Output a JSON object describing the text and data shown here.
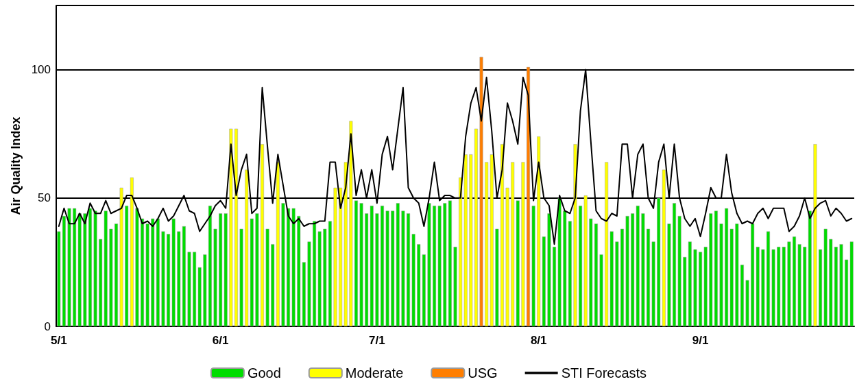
{
  "chart_data": {
    "type": "bar",
    "stacked": true,
    "ylabel": "Air Quality Index",
    "ylim": [
      0,
      125
    ],
    "yticks": [
      0,
      50,
      100
    ],
    "grid": "y",
    "legend": "bottom",
    "categories": [
      "5/1",
      null,
      null,
      null,
      null,
      null,
      null,
      null,
      null,
      null,
      null,
      null,
      null,
      null,
      null,
      null,
      null,
      null,
      null,
      null,
      null,
      null,
      null,
      null,
      null,
      null,
      null,
      null,
      null,
      null,
      null,
      "6/1",
      null,
      null,
      null,
      null,
      null,
      null,
      null,
      null,
      null,
      null,
      null,
      null,
      null,
      null,
      null,
      null,
      null,
      null,
      null,
      null,
      null,
      null,
      null,
      null,
      null,
      null,
      null,
      null,
      null,
      "7/1",
      null,
      null,
      null,
      null,
      null,
      null,
      null,
      null,
      null,
      null,
      null,
      null,
      null,
      null,
      null,
      null,
      null,
      null,
      null,
      null,
      null,
      null,
      null,
      null,
      null,
      null,
      null,
      null,
      null,
      null,
      "8/1",
      null,
      null,
      null,
      null,
      null,
      null,
      null,
      null,
      null,
      null,
      null,
      null,
      null,
      null,
      null,
      null,
      null,
      null,
      null,
      null,
      null,
      null,
      null,
      null,
      null,
      null,
      null,
      null,
      null,
      null,
      "9/1",
      null,
      null,
      null,
      null,
      null,
      null,
      null,
      null,
      null,
      null,
      null,
      null,
      null,
      null,
      null,
      null,
      null,
      null,
      null,
      null,
      null,
      null,
      null,
      null,
      null,
      null,
      null,
      null,
      null
    ],
    "series": [
      {
        "name": "Good",
        "color": "#00dd00",
        "values": [
          37,
          43,
          46,
          46,
          44,
          44,
          46,
          45,
          34,
          45,
          38,
          40,
          null,
          47,
          null,
          46,
          42,
          40,
          42,
          42,
          37,
          36,
          42,
          37,
          39,
          29,
          29,
          23,
          28,
          47,
          38,
          44,
          44,
          null,
          null,
          38,
          null,
          42,
          44,
          null,
          38,
          32,
          null,
          48,
          46,
          46,
          43,
          25,
          33,
          41,
          37,
          38,
          41,
          null,
          null,
          null,
          null,
          49,
          48,
          44,
          47,
          44,
          47,
          45,
          45,
          48,
          45,
          44,
          36,
          32,
          28,
          48,
          47,
          47,
          48,
          49,
          31,
          null,
          null,
          null,
          null,
          null,
          null,
          null,
          38,
          null,
          null,
          null,
          49,
          null,
          null,
          47,
          null,
          35,
          44,
          31,
          50,
          45,
          41,
          null,
          47,
          null,
          42,
          40,
          28,
          null,
          37,
          33,
          38,
          43,
          44,
          47,
          44,
          38,
          33,
          50,
          null,
          40,
          48,
          43,
          27,
          33,
          30,
          29,
          31,
          44,
          45,
          40,
          46,
          38,
          40,
          24,
          18,
          40,
          31,
          30,
          37,
          30,
          31,
          31,
          33,
          35,
          32,
          31,
          45,
          null,
          30,
          38,
          34,
          31,
          32,
          26,
          33
        ]
      },
      {
        "name": "Moderate",
        "color": "#ffff00",
        "values": [
          null,
          null,
          null,
          null,
          null,
          null,
          null,
          null,
          null,
          null,
          null,
          null,
          54,
          null,
          58,
          null,
          null,
          null,
          null,
          null,
          null,
          null,
          null,
          null,
          null,
          null,
          null,
          null,
          null,
          null,
          null,
          null,
          null,
          77,
          77,
          null,
          61,
          null,
          null,
          71,
          null,
          null,
          64,
          null,
          null,
          null,
          null,
          null,
          null,
          null,
          null,
          null,
          null,
          54,
          54,
          64,
          80,
          null,
          null,
          null,
          null,
          null,
          null,
          null,
          null,
          null,
          null,
          null,
          null,
          null,
          null,
          null,
          null,
          null,
          null,
          null,
          null,
          58,
          67,
          67,
          77,
          null,
          64,
          67,
          null,
          71,
          54,
          64,
          null,
          64,
          null,
          null,
          74,
          null,
          null,
          null,
          null,
          null,
          null,
          71,
          null,
          51,
          null,
          null,
          null,
          64,
          null,
          null,
          null,
          null,
          null,
          null,
          null,
          null,
          null,
          null,
          61,
          null,
          null,
          null,
          null,
          null,
          null,
          null,
          null,
          null,
          null,
          null,
          null,
          null,
          null,
          null,
          null,
          null,
          null,
          null,
          null,
          null,
          null,
          null,
          null,
          null,
          null,
          null,
          null,
          71,
          null,
          null,
          null,
          null,
          null,
          null,
          null
        ]
      },
      {
        "name": "USG",
        "color": "#ff7e00",
        "values": [
          null,
          null,
          null,
          null,
          null,
          null,
          null,
          null,
          null,
          null,
          null,
          null,
          null,
          null,
          null,
          null,
          null,
          null,
          null,
          null,
          null,
          null,
          null,
          null,
          null,
          null,
          null,
          null,
          null,
          null,
          null,
          null,
          null,
          null,
          null,
          null,
          null,
          null,
          null,
          null,
          null,
          null,
          null,
          null,
          null,
          null,
          null,
          null,
          null,
          null,
          null,
          null,
          null,
          null,
          null,
          null,
          null,
          null,
          null,
          null,
          null,
          null,
          null,
          null,
          null,
          null,
          null,
          null,
          null,
          null,
          null,
          null,
          null,
          null,
          null,
          null,
          null,
          null,
          null,
          null,
          null,
          105,
          null,
          null,
          null,
          null,
          null,
          null,
          null,
          null,
          101,
          null,
          null,
          null,
          null,
          null,
          null,
          null,
          null,
          null,
          null,
          null,
          null,
          null,
          null,
          null,
          null,
          null,
          null,
          null,
          null,
          null,
          null,
          null,
          null,
          null,
          null,
          null,
          null,
          null,
          null,
          null,
          null,
          null,
          null,
          null,
          null,
          null,
          null,
          null,
          null,
          null,
          null,
          null,
          null,
          null,
          null,
          null,
          null,
          null,
          null,
          null,
          null,
          null,
          null,
          null,
          null,
          null,
          null,
          null,
          null,
          null,
          null
        ]
      },
      {
        "name": "STI Forecasts",
        "type": "line",
        "color": "#000000",
        "marker": "none",
        "line_style": "solid",
        "values": [
          39,
          46,
          40,
          40,
          44,
          40,
          48,
          44,
          44,
          49,
          44,
          45,
          46,
          51,
          51,
          46,
          40,
          41,
          39,
          42,
          46,
          41,
          43,
          47,
          51,
          45,
          44,
          37,
          40,
          43,
          47,
          49,
          46,
          71,
          51,
          61,
          67,
          44,
          46,
          93,
          70,
          48,
          67,
          55,
          43,
          40,
          42,
          39,
          40,
          40,
          41,
          41,
          64,
          64,
          46,
          54,
          75,
          51,
          61,
          50,
          61,
          48,
          67,
          74,
          61,
          77,
          93,
          54,
          50,
          48,
          39,
          50,
          64,
          49,
          51,
          51,
          50,
          50,
          74,
          87,
          93,
          80,
          97,
          76,
          50,
          61,
          87,
          80,
          71,
          97,
          90,
          49,
          64,
          50,
          47,
          32,
          51,
          45,
          44,
          50,
          84,
          100,
          72,
          45,
          42,
          41,
          44,
          43,
          71,
          71,
          50,
          67,
          71,
          50,
          46,
          64,
          71,
          50,
          71,
          50,
          42,
          39,
          42,
          35,
          44,
          54,
          50,
          50,
          67,
          52,
          44,
          40,
          41,
          40,
          44,
          46,
          42,
          46,
          46,
          46,
          37,
          39,
          43,
          50,
          42,
          46,
          48,
          49,
          43,
          46,
          44,
          41,
          42
        ]
      }
    ]
  }
}
